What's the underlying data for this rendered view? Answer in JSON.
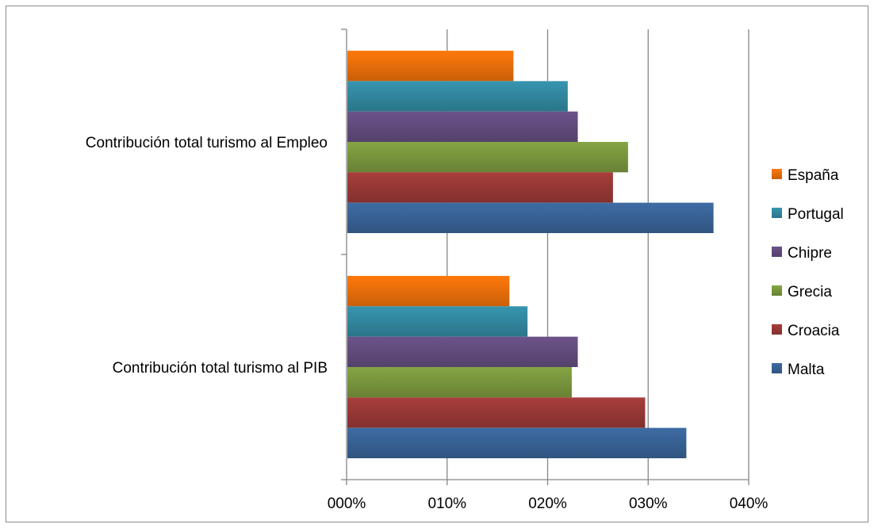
{
  "chart_data": {
    "type": "bar",
    "orientation": "horizontal",
    "title": "",
    "xlabel": "",
    "ylabel": "",
    "xlim": [
      0,
      0.4
    ],
    "x_tick_labels": [
      "000%",
      "010%",
      "020%",
      "030%",
      "040%"
    ],
    "categories": [
      "Contribución total turismo al Empleo",
      "Contribución total turismo al PIB"
    ],
    "series": [
      {
        "name": "España",
        "color": "#e46c0a",
        "values": [
          0.166,
          0.162
        ]
      },
      {
        "name": "Portugal",
        "color": "#31859c",
        "values": [
          0.22,
          0.18
        ]
      },
      {
        "name": "Chipre",
        "color": "#604a7b",
        "values": [
          0.23,
          0.23
        ]
      },
      {
        "name": "Grecia",
        "color": "#77933c",
        "values": [
          0.28,
          0.224
        ]
      },
      {
        "name": "Croacia",
        "color": "#953735",
        "values": [
          0.265,
          0.297
        ]
      },
      {
        "name": "Malta",
        "color": "#376092",
        "values": [
          0.365,
          0.338
        ]
      }
    ],
    "grid": "vertical",
    "legend_position": "right"
  }
}
